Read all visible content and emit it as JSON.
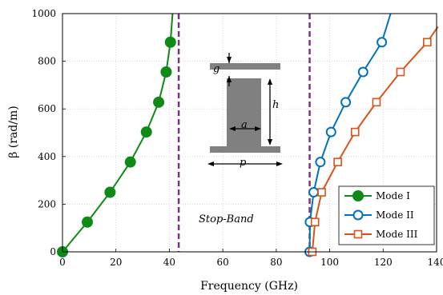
{
  "chart_data": {
    "type": "line",
    "xlabel": "Frequency (GHz)",
    "ylabel": "β (rad/m)",
    "xlim": [
      0,
      140
    ],
    "ylim": [
      0,
      1000
    ],
    "xticks": [
      "0",
      "20",
      "40",
      "60",
      "80",
      "100",
      "120",
      "140"
    ],
    "yticks": [
      "0",
      "200",
      "400",
      "600",
      "800",
      "1000"
    ],
    "grid": true,
    "legend_position": "bottom-right",
    "series": [
      {
        "name": "Mode I",
        "color": "#0e8a16",
        "marker": "filled-circle",
        "x": [
          0,
          9.3,
          17.8,
          25.4,
          31.4,
          36.0,
          38.8,
          40.4
        ],
        "y": [
          0,
          125,
          250,
          377,
          503,
          628,
          755,
          880
        ],
        "curve_x": [
          0,
          9.3,
          17.8,
          25.4,
          31.4,
          36.0,
          38.8,
          40.4,
          41.2
        ],
        "curve_y": [
          0,
          125,
          250,
          377,
          503,
          628,
          755,
          880,
          1000
        ]
      },
      {
        "name": "Mode II",
        "color": "#0072bd",
        "marker": "open-circle",
        "x": [
          92.5,
          92.6,
          94.0,
          96.5,
          100.5,
          106.0,
          112.5,
          119.5
        ],
        "y": [
          0,
          125,
          250,
          377,
          503,
          628,
          755,
          880
        ],
        "curve_x": [
          92.5,
          92.6,
          94.0,
          96.5,
          100.5,
          106.0,
          112.5,
          119.5,
          122.8
        ],
        "curve_y": [
          0,
          125,
          250,
          377,
          503,
          628,
          755,
          880,
          1000
        ]
      },
      {
        "name": "Mode III",
        "color": "#d95319",
        "marker": "open-square",
        "x": [
          93.5,
          94.5,
          97.0,
          103.0,
          109.5,
          117.5,
          126.5,
          136.5
        ],
        "y": [
          0,
          125,
          250,
          377,
          503,
          628,
          755,
          880
        ],
        "curve_x": [
          93.5,
          94.5,
          97.0,
          103.0,
          109.5,
          117.5,
          126.5,
          136.5,
          140.5
        ],
        "curve_y": [
          0,
          125,
          250,
          377,
          503,
          628,
          755,
          880,
          945
        ]
      }
    ],
    "vlines": [
      {
        "x": 43.5,
        "color": "#7e2f8e"
      },
      {
        "x": 92.5,
        "color": "#7e2f8e"
      }
    ],
    "annotations": {
      "stop_band": "Stop-Band",
      "diagram_labels": {
        "g": "g",
        "h": "h",
        "a": "a",
        "p": "p"
      }
    }
  }
}
